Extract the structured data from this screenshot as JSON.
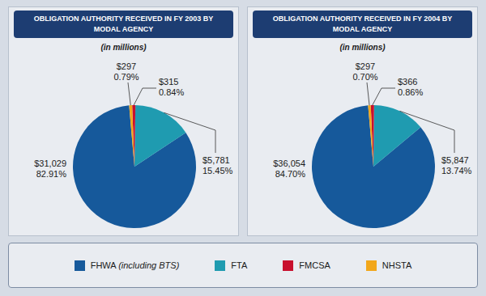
{
  "chart_data": [
    {
      "type": "pie",
      "title": "OBLIGATION AUTHORITY RECEIVED IN FY 2003 BY MODAL AGENCY",
      "subtitle": "(in millions)",
      "categories": [
        "FHWA (including BTS)",
        "FTA",
        "FMCSA",
        "NHSTA"
      ],
      "values": [
        31029,
        5781,
        315,
        297
      ],
      "value_labels": [
        "$31,029",
        "$5,781",
        "$315",
        "$297"
      ],
      "percent_labels": [
        "82.91%",
        "15.45%",
        "0.84%",
        "0.79%"
      ],
      "colors": [
        "#16599b",
        "#1f9bb0",
        "#c8102e",
        "#f2a71b"
      ],
      "data_labels": true,
      "legend": "bottom"
    },
    {
      "type": "pie",
      "title": "OBLIGATION AUTHORITY RECEIVED IN FY 2004 BY MODAL AGENCY",
      "subtitle": "(in millions)",
      "categories": [
        "FHWA (including BTS)",
        "FTA",
        "FMCSA",
        "NHSTA"
      ],
      "values": [
        36054,
        5847,
        366,
        297
      ],
      "value_labels": [
        "$36,054",
        "$5,847",
        "$366",
        "$297"
      ],
      "percent_labels": [
        "84.70%",
        "13.74%",
        "0.86%",
        "0.70%"
      ],
      "colors": [
        "#16599b",
        "#1f9bb0",
        "#c8102e",
        "#f2a71b"
      ],
      "data_labels": true,
      "legend": "bottom"
    }
  ]
}
